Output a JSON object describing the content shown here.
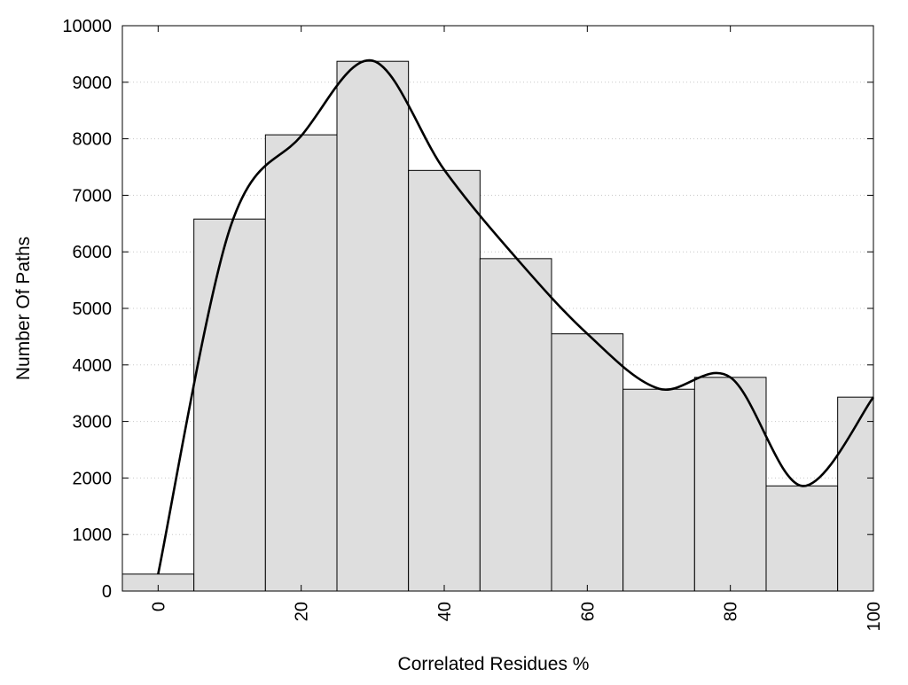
{
  "chart_data": {
    "type": "bar",
    "xlabel": "Correlated Residues %",
    "ylabel": "Number Of Paths",
    "xlim": [
      -5,
      100
    ],
    "ylim": [
      0,
      10000
    ],
    "x_ticks": [
      "0",
      "20",
      "40",
      "60",
      "80",
      "100"
    ],
    "x_tick_values": [
      0,
      20,
      40,
      60,
      80,
      100
    ],
    "y_ticks": [
      "0",
      "1000",
      "2000",
      "3000",
      "4000",
      "5000",
      "6000",
      "7000",
      "8000",
      "9000",
      "10000"
    ],
    "y_tick_values": [
      0,
      1000,
      2000,
      3000,
      4000,
      5000,
      6000,
      7000,
      8000,
      9000,
      10000
    ],
    "grid": "horizontal dotted",
    "bin_width": 10,
    "series": [
      {
        "type": "bar",
        "bins": [
          {
            "x": 0,
            "value": 300
          },
          {
            "x": 10,
            "value": 6580
          },
          {
            "x": 20,
            "value": 8070
          },
          {
            "x": 30,
            "value": 9370
          },
          {
            "x": 40,
            "value": 7440
          },
          {
            "x": 50,
            "value": 5880
          },
          {
            "x": 60,
            "value": 4550
          },
          {
            "x": 70,
            "value": 3570
          },
          {
            "x": 80,
            "value": 3780
          },
          {
            "x": 90,
            "value": 1860
          },
          {
            "x": 100,
            "value": 3430
          }
        ],
        "color": "#dedede"
      },
      {
        "type": "line",
        "smooth": true,
        "points": [
          {
            "x": 0,
            "y": 300
          },
          {
            "x": 10,
            "y": 6400
          },
          {
            "x": 20,
            "y": 8050
          },
          {
            "x": 30,
            "y": 9380
          },
          {
            "x": 40,
            "y": 7450
          },
          {
            "x": 50,
            "y": 5900
          },
          {
            "x": 60,
            "y": 4550
          },
          {
            "x": 70,
            "y": 3580
          },
          {
            "x": 80,
            "y": 3780
          },
          {
            "x": 90,
            "y": 1860
          },
          {
            "x": 100,
            "y": 3430
          }
        ],
        "color": "#000000"
      }
    ]
  }
}
